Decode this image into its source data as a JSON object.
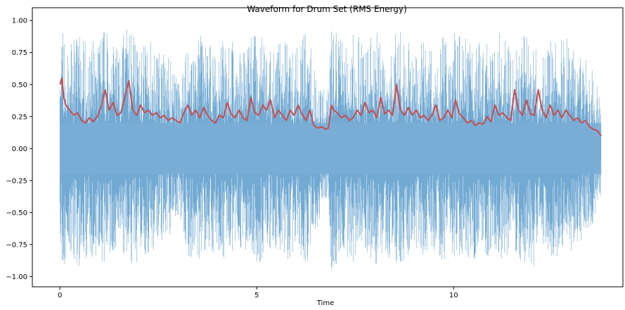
{
  "chart_data": {
    "type": "area",
    "title": "Waveform for Drum Set (RMS Energy)",
    "xlabel": "Time",
    "ylabel": "",
    "xlim": [
      -0.7,
      14.3
    ],
    "ylim": [
      -1.08,
      1.1
    ],
    "xticks": [
      0,
      5,
      10
    ],
    "xtick_labels": [
      "0",
      "5",
      "10"
    ],
    "yticks": [
      1.0,
      0.75,
      0.5,
      0.25,
      0.0,
      -0.25,
      -0.5,
      -0.75,
      -1.0
    ],
    "ytick_labels": [
      "1.00",
      "0.75",
      "0.50",
      "0.25",
      "0.00",
      "−0.25",
      "−0.50",
      "−0.75",
      "−1.00"
    ],
    "grid": false,
    "colors": {
      "waveform": "#7aaed6",
      "waveform_dark": "#5b9bcb",
      "rms": "#c44e52"
    },
    "series": [
      {
        "type": "waveform-envelope",
        "x": [
          0.0,
          0.1,
          0.25,
          0.5,
          0.75,
          1.0,
          1.25,
          1.5,
          1.75,
          2.0,
          2.25,
          2.5,
          2.75,
          2.95,
          3.05,
          3.25,
          3.5,
          3.75,
          4.0,
          4.25,
          4.5,
          4.75,
          5.0,
          5.25,
          5.5,
          5.75,
          6.0,
          6.25,
          6.5,
          6.75,
          6.82,
          6.9,
          7.0,
          7.25,
          7.5,
          7.75,
          8.0,
          8.25,
          8.5,
          8.75,
          9.0,
          9.25,
          9.5,
          9.75,
          9.9,
          10.0,
          10.25,
          10.5,
          10.75,
          11.0,
          11.25,
          11.5,
          11.75,
          12.0,
          12.25,
          12.5,
          12.75,
          13.0,
          13.25,
          13.5,
          13.75
        ],
        "max": [
          0.92,
          0.95,
          0.85,
          0.93,
          0.8,
          0.95,
          0.9,
          0.85,
          0.96,
          0.88,
          0.94,
          0.82,
          0.74,
          0.6,
          0.55,
          0.88,
          0.9,
          0.85,
          0.8,
          0.93,
          0.78,
          0.85,
          0.95,
          0.8,
          0.83,
          0.91,
          0.78,
          0.95,
          0.65,
          0.45,
          0.5,
          0.95,
          0.93,
          0.85,
          0.92,
          0.8,
          0.95,
          0.84,
          0.9,
          0.94,
          0.78,
          0.88,
          0.82,
          0.91,
          0.7,
          0.93,
          0.85,
          0.9,
          0.8,
          0.95,
          0.88,
          0.82,
          0.92,
          0.95,
          0.75,
          0.9,
          0.85,
          0.88,
          0.75,
          0.65,
          0.4
        ],
        "min": [
          -0.9,
          -0.95,
          -0.85,
          -0.92,
          -0.82,
          -0.95,
          -0.9,
          -0.85,
          -0.92,
          -0.88,
          -0.86,
          -0.8,
          -0.72,
          -0.6,
          -0.55,
          -0.85,
          -0.88,
          -0.83,
          -0.8,
          -0.9,
          -0.76,
          -0.82,
          -0.93,
          -0.8,
          -0.82,
          -0.9,
          -0.78,
          -0.93,
          -0.65,
          -0.45,
          -0.5,
          -0.95,
          -0.92,
          -0.84,
          -0.9,
          -0.8,
          -0.93,
          -0.82,
          -0.9,
          -0.92,
          -0.76,
          -0.86,
          -0.8,
          -0.9,
          -0.7,
          -0.92,
          -0.84,
          -0.88,
          -0.8,
          -0.92,
          -0.86,
          -0.8,
          -0.9,
          -0.95,
          -0.74,
          -0.88,
          -0.84,
          -0.85,
          -0.72,
          -0.62,
          -0.38
        ]
      },
      {
        "type": "rms",
        "x": [
          0.0,
          0.05,
          0.1,
          0.15,
          0.25,
          0.35,
          0.45,
          0.55,
          0.65,
          0.75,
          0.85,
          0.95,
          1.05,
          1.15,
          1.25,
          1.35,
          1.45,
          1.55,
          1.65,
          1.75,
          1.85,
          1.95,
          2.05,
          2.15,
          2.25,
          2.35,
          2.45,
          2.55,
          2.65,
          2.75,
          2.85,
          2.95,
          3.05,
          3.15,
          3.25,
          3.35,
          3.45,
          3.55,
          3.65,
          3.75,
          3.85,
          3.95,
          4.05,
          4.15,
          4.25,
          4.35,
          4.45,
          4.55,
          4.65,
          4.75,
          4.85,
          4.95,
          5.05,
          5.15,
          5.25,
          5.35,
          5.45,
          5.55,
          5.65,
          5.75,
          5.85,
          5.95,
          6.05,
          6.15,
          6.25,
          6.35,
          6.45,
          6.55,
          6.65,
          6.75,
          6.82,
          6.9,
          6.95,
          7.05,
          7.15,
          7.25,
          7.35,
          7.45,
          7.55,
          7.65,
          7.75,
          7.85,
          7.95,
          8.05,
          8.15,
          8.25,
          8.35,
          8.45,
          8.55,
          8.65,
          8.75,
          8.85,
          8.95,
          9.05,
          9.15,
          9.25,
          9.35,
          9.45,
          9.55,
          9.65,
          9.75,
          9.85,
          9.95,
          10.05,
          10.15,
          10.25,
          10.35,
          10.45,
          10.55,
          10.65,
          10.75,
          10.85,
          10.95,
          11.05,
          11.15,
          11.25,
          11.35,
          11.45,
          11.55,
          11.65,
          11.75,
          11.85,
          11.95,
          12.05,
          12.15,
          12.25,
          12.35,
          12.45,
          12.55,
          12.65,
          12.75,
          12.85,
          12.95,
          13.05,
          13.15,
          13.25,
          13.35,
          13.45,
          13.55,
          13.65,
          13.75
        ],
        "y": [
          0.5,
          0.55,
          0.4,
          0.34,
          0.3,
          0.26,
          0.28,
          0.22,
          0.2,
          0.24,
          0.21,
          0.25,
          0.33,
          0.46,
          0.3,
          0.36,
          0.26,
          0.28,
          0.4,
          0.53,
          0.3,
          0.26,
          0.34,
          0.28,
          0.3,
          0.26,
          0.28,
          0.24,
          0.26,
          0.22,
          0.24,
          0.22,
          0.2,
          0.28,
          0.34,
          0.26,
          0.3,
          0.24,
          0.32,
          0.26,
          0.22,
          0.2,
          0.26,
          0.24,
          0.36,
          0.27,
          0.24,
          0.3,
          0.24,
          0.22,
          0.4,
          0.28,
          0.26,
          0.34,
          0.3,
          0.38,
          0.24,
          0.3,
          0.26,
          0.22,
          0.3,
          0.26,
          0.34,
          0.27,
          0.22,
          0.3,
          0.18,
          0.16,
          0.17,
          0.15,
          0.16,
          0.34,
          0.3,
          0.28,
          0.24,
          0.26,
          0.22,
          0.24,
          0.3,
          0.26,
          0.36,
          0.28,
          0.3,
          0.24,
          0.4,
          0.27,
          0.3,
          0.26,
          0.5,
          0.3,
          0.26,
          0.32,
          0.26,
          0.3,
          0.24,
          0.26,
          0.22,
          0.26,
          0.34,
          0.22,
          0.24,
          0.3,
          0.24,
          0.38,
          0.27,
          0.24,
          0.2,
          0.22,
          0.18,
          0.2,
          0.19,
          0.25,
          0.21,
          0.34,
          0.26,
          0.28,
          0.24,
          0.22,
          0.46,
          0.3,
          0.26,
          0.38,
          0.27,
          0.26,
          0.46,
          0.3,
          0.24,
          0.34,
          0.26,
          0.3,
          0.24,
          0.3,
          0.26,
          0.22,
          0.24,
          0.2,
          0.22,
          0.17,
          0.15,
          0.14,
          0.1
        ]
      }
    ]
  }
}
